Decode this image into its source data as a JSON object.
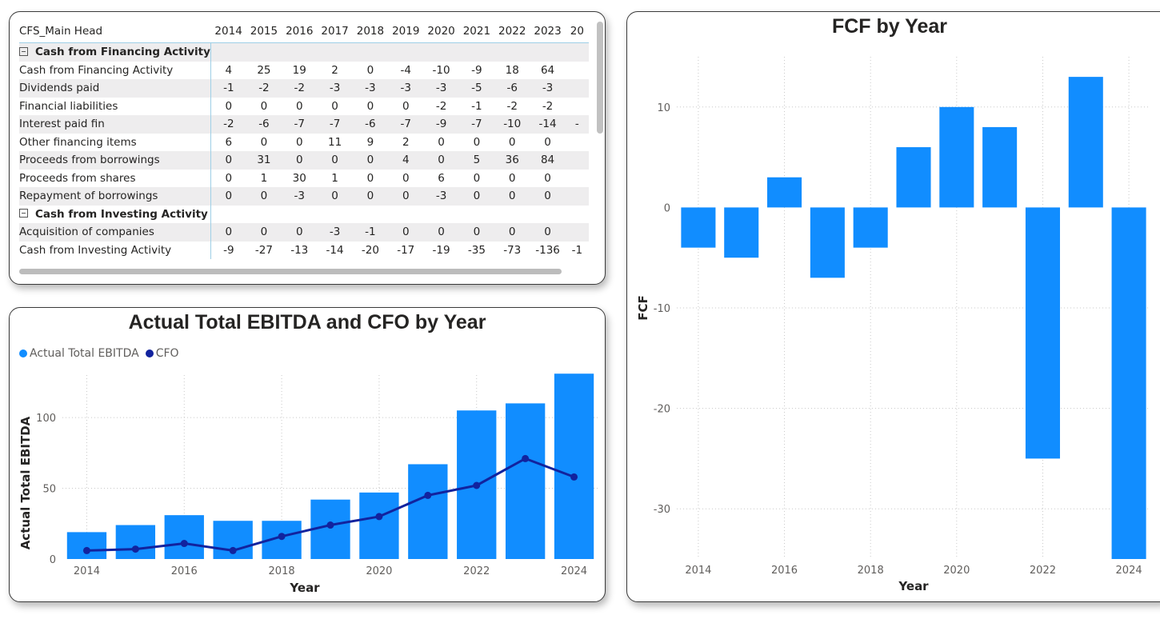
{
  "matrix": {
    "header_label": "CFS_Main Head",
    "years": [
      "2014",
      "2015",
      "2016",
      "2017",
      "2018",
      "2019",
      "2020",
      "2021",
      "2022",
      "2023",
      "20"
    ],
    "groups": [
      {
        "label": "Cash from Financing Activity",
        "rows": [
          {
            "label": "Cash from Financing Activity",
            "values": [
              "4",
              "25",
              "19",
              "2",
              "0",
              "-4",
              "-10",
              "-9",
              "18",
              "64",
              ""
            ]
          },
          {
            "label": "Dividends paid",
            "values": [
              "-1",
              "-2",
              "-2",
              "-3",
              "-3",
              "-3",
              "-3",
              "-5",
              "-6",
              "-3",
              ""
            ]
          },
          {
            "label": "Financial liabilities",
            "values": [
              "0",
              "0",
              "0",
              "0",
              "0",
              "0",
              "-2",
              "-1",
              "-2",
              "-2",
              ""
            ]
          },
          {
            "label": "Interest paid fin",
            "values": [
              "-2",
              "-6",
              "-7",
              "-7",
              "-6",
              "-7",
              "-9",
              "-7",
              "-10",
              "-14",
              "-"
            ]
          },
          {
            "label": "Other financing items",
            "values": [
              "6",
              "0",
              "0",
              "11",
              "9",
              "2",
              "0",
              "0",
              "0",
              "0",
              ""
            ]
          },
          {
            "label": "Proceeds from borrowings",
            "values": [
              "0",
              "31",
              "0",
              "0",
              "0",
              "4",
              "0",
              "5",
              "36",
              "84",
              ""
            ]
          },
          {
            "label": "Proceeds from shares",
            "values": [
              "0",
              "1",
              "30",
              "1",
              "0",
              "0",
              "6",
              "0",
              "0",
              "0",
              ""
            ]
          },
          {
            "label": "Repayment of borrowings",
            "values": [
              "0",
              "0",
              "-3",
              "0",
              "0",
              "0",
              "-3",
              "0",
              "0",
              "0",
              ""
            ]
          }
        ]
      },
      {
        "label": "Cash from Investing Activity",
        "rows": [
          {
            "label": "Acquisition of companies",
            "values": [
              "0",
              "0",
              "0",
              "-3",
              "-1",
              "0",
              "0",
              "0",
              "0",
              "0",
              ""
            ]
          },
          {
            "label": "Cash from Investing Activity",
            "values": [
              "-9",
              "-27",
              "-13",
              "-14",
              "-20",
              "-17",
              "-19",
              "-35",
              "-73",
              "-136",
              "-1"
            ]
          }
        ]
      }
    ]
  },
  "chart_data": [
    {
      "type": "bar",
      "title": "Actual Total EBITDA and CFO by Year",
      "xlabel": "Year",
      "ylabel": "Actual Total EBITDA",
      "categories": [
        2014,
        2015,
        2016,
        2017,
        2018,
        2019,
        2020,
        2021,
        2022,
        2023,
        2024
      ],
      "xticks": [
        "2014",
        "2016",
        "2018",
        "2020",
        "2022",
        "2024"
      ],
      "yticks": [
        0,
        50,
        100
      ],
      "ylim": [
        0,
        130
      ],
      "legend_position": "top-left",
      "grid": true,
      "series": [
        {
          "name": "Actual Total EBITDA",
          "kind": "bar",
          "color": "#118DFF",
          "values": [
            19,
            24,
            31,
            27,
            27,
            42,
            47,
            67,
            105,
            110,
            131
          ]
        },
        {
          "name": "CFO",
          "kind": "line",
          "color": "#12239E",
          "values": [
            6,
            7,
            11,
            6,
            16,
            24,
            30,
            45,
            52,
            71,
            58
          ]
        }
      ]
    },
    {
      "type": "bar",
      "title": "FCF by Year",
      "xlabel": "Year",
      "ylabel": "FCF",
      "categories": [
        2014,
        2015,
        2016,
        2017,
        2018,
        2019,
        2020,
        2021,
        2022,
        2023,
        2024
      ],
      "xticks": [
        "2014",
        "2016",
        "2018",
        "2020",
        "2022",
        "2024"
      ],
      "yticks": [
        10,
        0,
        -10,
        -20,
        -30
      ],
      "ylim": [
        -35,
        15
      ],
      "grid": true,
      "series": [
        {
          "kind": "bar",
          "color": "#118DFF",
          "values": [
            -4,
            -5,
            3,
            -7,
            -4,
            6,
            10,
            8,
            -25,
            13,
            -35
          ]
        }
      ]
    }
  ]
}
